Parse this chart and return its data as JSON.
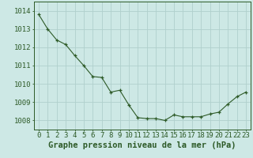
{
  "x": [
    0,
    1,
    2,
    3,
    4,
    5,
    6,
    7,
    8,
    9,
    10,
    11,
    12,
    13,
    14,
    15,
    16,
    17,
    18,
    19,
    20,
    21,
    22,
    23
  ],
  "y": [
    1013.8,
    1013.0,
    1012.4,
    1012.15,
    1011.55,
    1011.0,
    1010.4,
    1010.35,
    1009.55,
    1009.65,
    1008.85,
    1008.15,
    1008.1,
    1008.1,
    1008.0,
    1008.3,
    1008.2,
    1008.2,
    1008.2,
    1008.35,
    1008.45,
    1008.9,
    1009.3,
    1009.55
  ],
  "line_color": "#2d5a27",
  "marker": "+",
  "bg_color": "#cde8e5",
  "grid_color": "#b0d0cc",
  "xlabel": "Graphe pression niveau de la mer (hPa)",
  "xlabel_fontsize": 7.5,
  "ylabel_ticks": [
    1008,
    1009,
    1010,
    1011,
    1012,
    1013,
    1014
  ],
  "xlim": [
    -0.5,
    23.5
  ],
  "ylim": [
    1007.5,
    1014.5
  ],
  "tick_label_color": "#2d5a27",
  "tick_fontsize": 6.5,
  "border_color": "#2d5a27"
}
